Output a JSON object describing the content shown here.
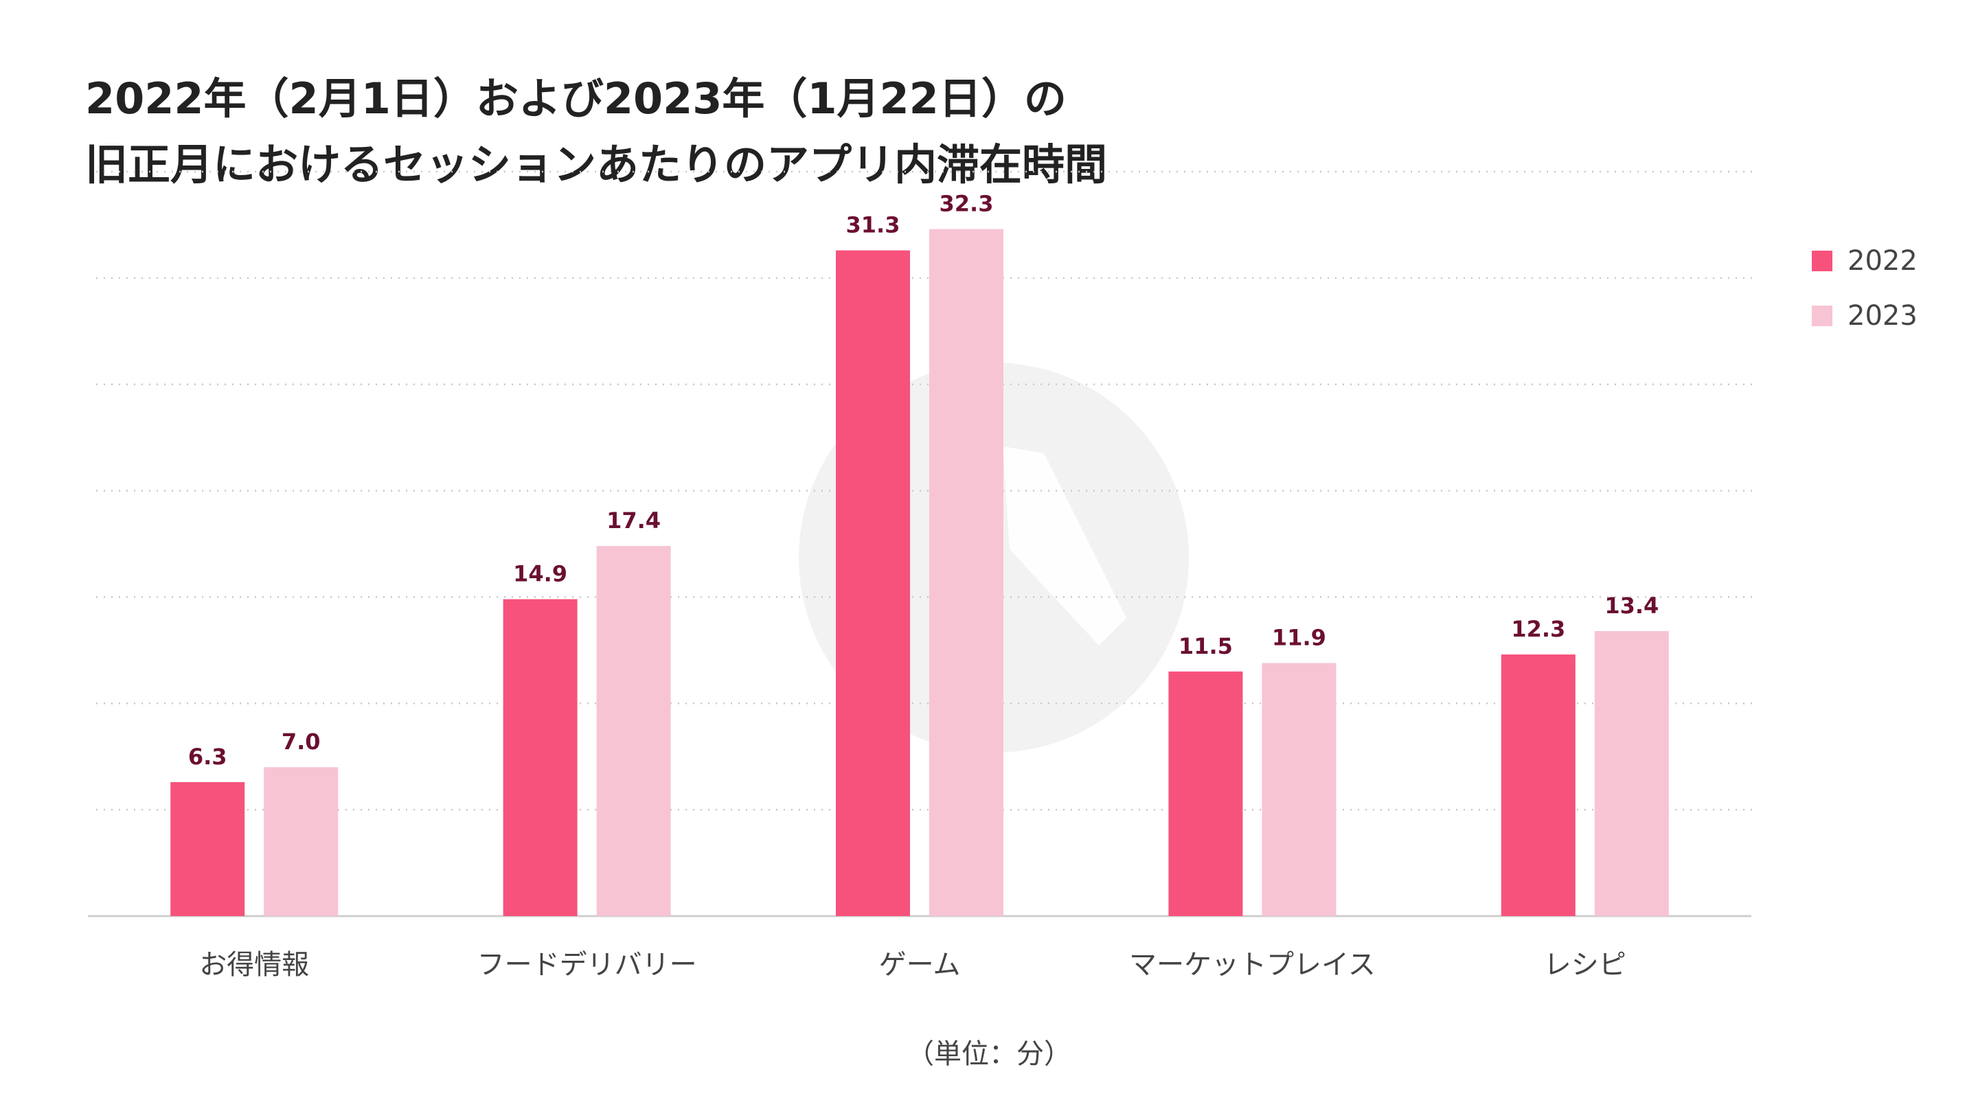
{
  "chart_data": {
    "type": "bar",
    "title_lines": [
      "2022年（2月1日）および2023年（1月22日）の",
      "旧正月におけるセッションあたりのアプリ内滞在時間"
    ],
    "categories": [
      "お得情報",
      "フードデリバリー",
      "ゲーム",
      "マーケットプレイス",
      "レシピ"
    ],
    "series": [
      {
        "name": "2022",
        "values": [
          6.3,
          14.9,
          31.3,
          11.5,
          12.3
        ],
        "color": "#f7527c"
      },
      {
        "name": "2023",
        "values": [
          7.0,
          17.4,
          32.3,
          11.9,
          13.4
        ],
        "color": "#f7c4d3"
      }
    ],
    "ylim": [
      0,
      35
    ],
    "grid": true,
    "legend_position": "top-right",
    "unit_label": "（単位：分）",
    "value_label_color": "#6b0f32"
  }
}
